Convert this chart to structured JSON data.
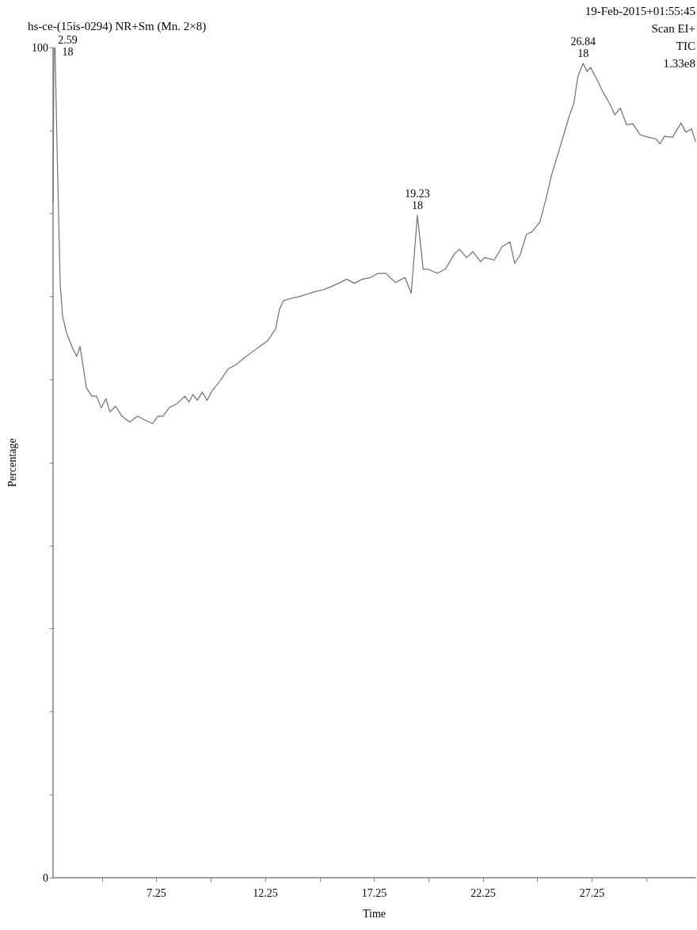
{
  "chart_data": {
    "type": "line",
    "title": "hs-ce-(15is-0294) NR+Sm (Mn. 2×8)",
    "xlabel": "Time",
    "ylabel": "Percentage",
    "annotations": [
      "19-Feb-2015+01:55:45",
      "Scan EI+",
      "TIC",
      "1.33e8",
      {
        "text": "2.59\n18",
        "x": 2.59,
        "y": 100
      },
      {
        "text": "19.23\n18",
        "x": 19.23,
        "y": 79.8
      },
      {
        "text": "26.84\n18",
        "x": 26.84,
        "y": 98.1
      }
    ],
    "xlim": [
      2.5,
      32.0
    ],
    "xticks": [
      {
        "value": 4.75,
        "label": null
      },
      7.25,
      {
        "value": 9.75,
        "label": null
      },
      12.25,
      {
        "value": 14.75,
        "label": null
      },
      17.25,
      {
        "value": 19.75,
        "label": null
      },
      22.25,
      {
        "value": 24.75,
        "label": null
      },
      27.25,
      {
        "value": 29.75,
        "label": null
      }
    ],
    "ylim": [
      0,
      100
    ],
    "yticks": [
      0,
      {
        "value": 10,
        "label": null
      },
      {
        "value": 20,
        "label": null
      },
      {
        "value": 30,
        "label": null
      },
      {
        "value": 40,
        "label": null
      },
      {
        "value": 50,
        "label": null
      },
      {
        "value": 60,
        "label": null
      },
      {
        "value": 70,
        "label": null
      },
      {
        "value": 80,
        "label": null
      },
      {
        "value": 90,
        "label": null
      },
      100
    ],
    "series": [
      {
        "color": "#707070",
        "x": [
          2.5,
          2.54,
          2.59,
          2.68,
          2.76,
          2.83,
          2.94,
          3.12,
          3.41,
          3.59,
          3.74,
          3.84,
          4.03,
          4.28,
          4.5,
          4.71,
          4.93,
          5.11,
          5.37,
          5.66,
          6.02,
          6.38,
          6.67,
          7.07,
          7.32,
          7.54,
          7.83,
          8.19,
          8.55,
          8.74,
          8.92,
          9.13,
          9.35,
          9.57,
          9.82,
          10.18,
          10.55,
          10.91,
          11.27,
          11.63,
          12.0,
          12.36,
          12.72,
          12.9,
          13.08,
          13.45,
          13.81,
          14.17,
          14.53,
          14.89,
          15.26,
          15.62,
          15.98,
          16.34,
          16.71,
          17.07,
          17.43,
          17.79,
          17.97,
          18.23,
          18.66,
          18.95,
          19.23,
          19.5,
          19.71,
          20.15,
          20.51,
          20.95,
          21.16,
          21.49,
          21.78,
          22.14,
          22.32,
          22.76,
          23.12,
          23.48,
          23.7,
          23.95,
          24.24,
          24.5,
          24.86,
          25.15,
          25.4,
          25.84,
          26.2,
          26.42,
          26.6,
          26.84,
          27.03,
          27.18,
          27.47,
          27.76,
          28.05,
          28.3,
          28.55,
          28.84,
          29.13,
          29.46,
          29.82,
          30.18,
          30.37,
          30.58,
          30.95,
          31.34,
          31.56,
          31.82,
          32.0
        ],
        "values": [
          81.4,
          99.8,
          100,
          88.5,
          79.0,
          71.4,
          67.6,
          65.6,
          63.7,
          62.8,
          64.0,
          62.3,
          59.0,
          58.0,
          58.0,
          56.6,
          57.7,
          56.1,
          56.8,
          55.6,
          54.9,
          55.6,
          55.2,
          54.7,
          55.6,
          55.6,
          56.6,
          57.1,
          58.0,
          57.3,
          58.2,
          57.5,
          58.5,
          57.5,
          58.7,
          59.9,
          61.3,
          61.8,
          62.6,
          63.3,
          64.0,
          64.7,
          66.1,
          68.5,
          69.5,
          69.8,
          70.0,
          70.3,
          70.6,
          70.8,
          71.2,
          71.6,
          72.1,
          71.6,
          72.1,
          72.3,
          72.8,
          72.8,
          72.3,
          71.7,
          72.3,
          70.4,
          79.8,
          73.3,
          73.3,
          72.8,
          73.3,
          75.2,
          75.7,
          74.7,
          75.4,
          74.2,
          74.7,
          74.4,
          76.0,
          76.6,
          74.0,
          75.0,
          77.5,
          77.8,
          79.0,
          81.9,
          84.7,
          88.5,
          91.7,
          93.3,
          96.5,
          98.1,
          97.1,
          97.6,
          96.2,
          94.6,
          93.3,
          91.9,
          92.7,
          90.7,
          90.8,
          89.5,
          89.2,
          89.0,
          88.4,
          89.3,
          89.2,
          90.9,
          89.8,
          90.2,
          88.7
        ]
      }
    ]
  }
}
